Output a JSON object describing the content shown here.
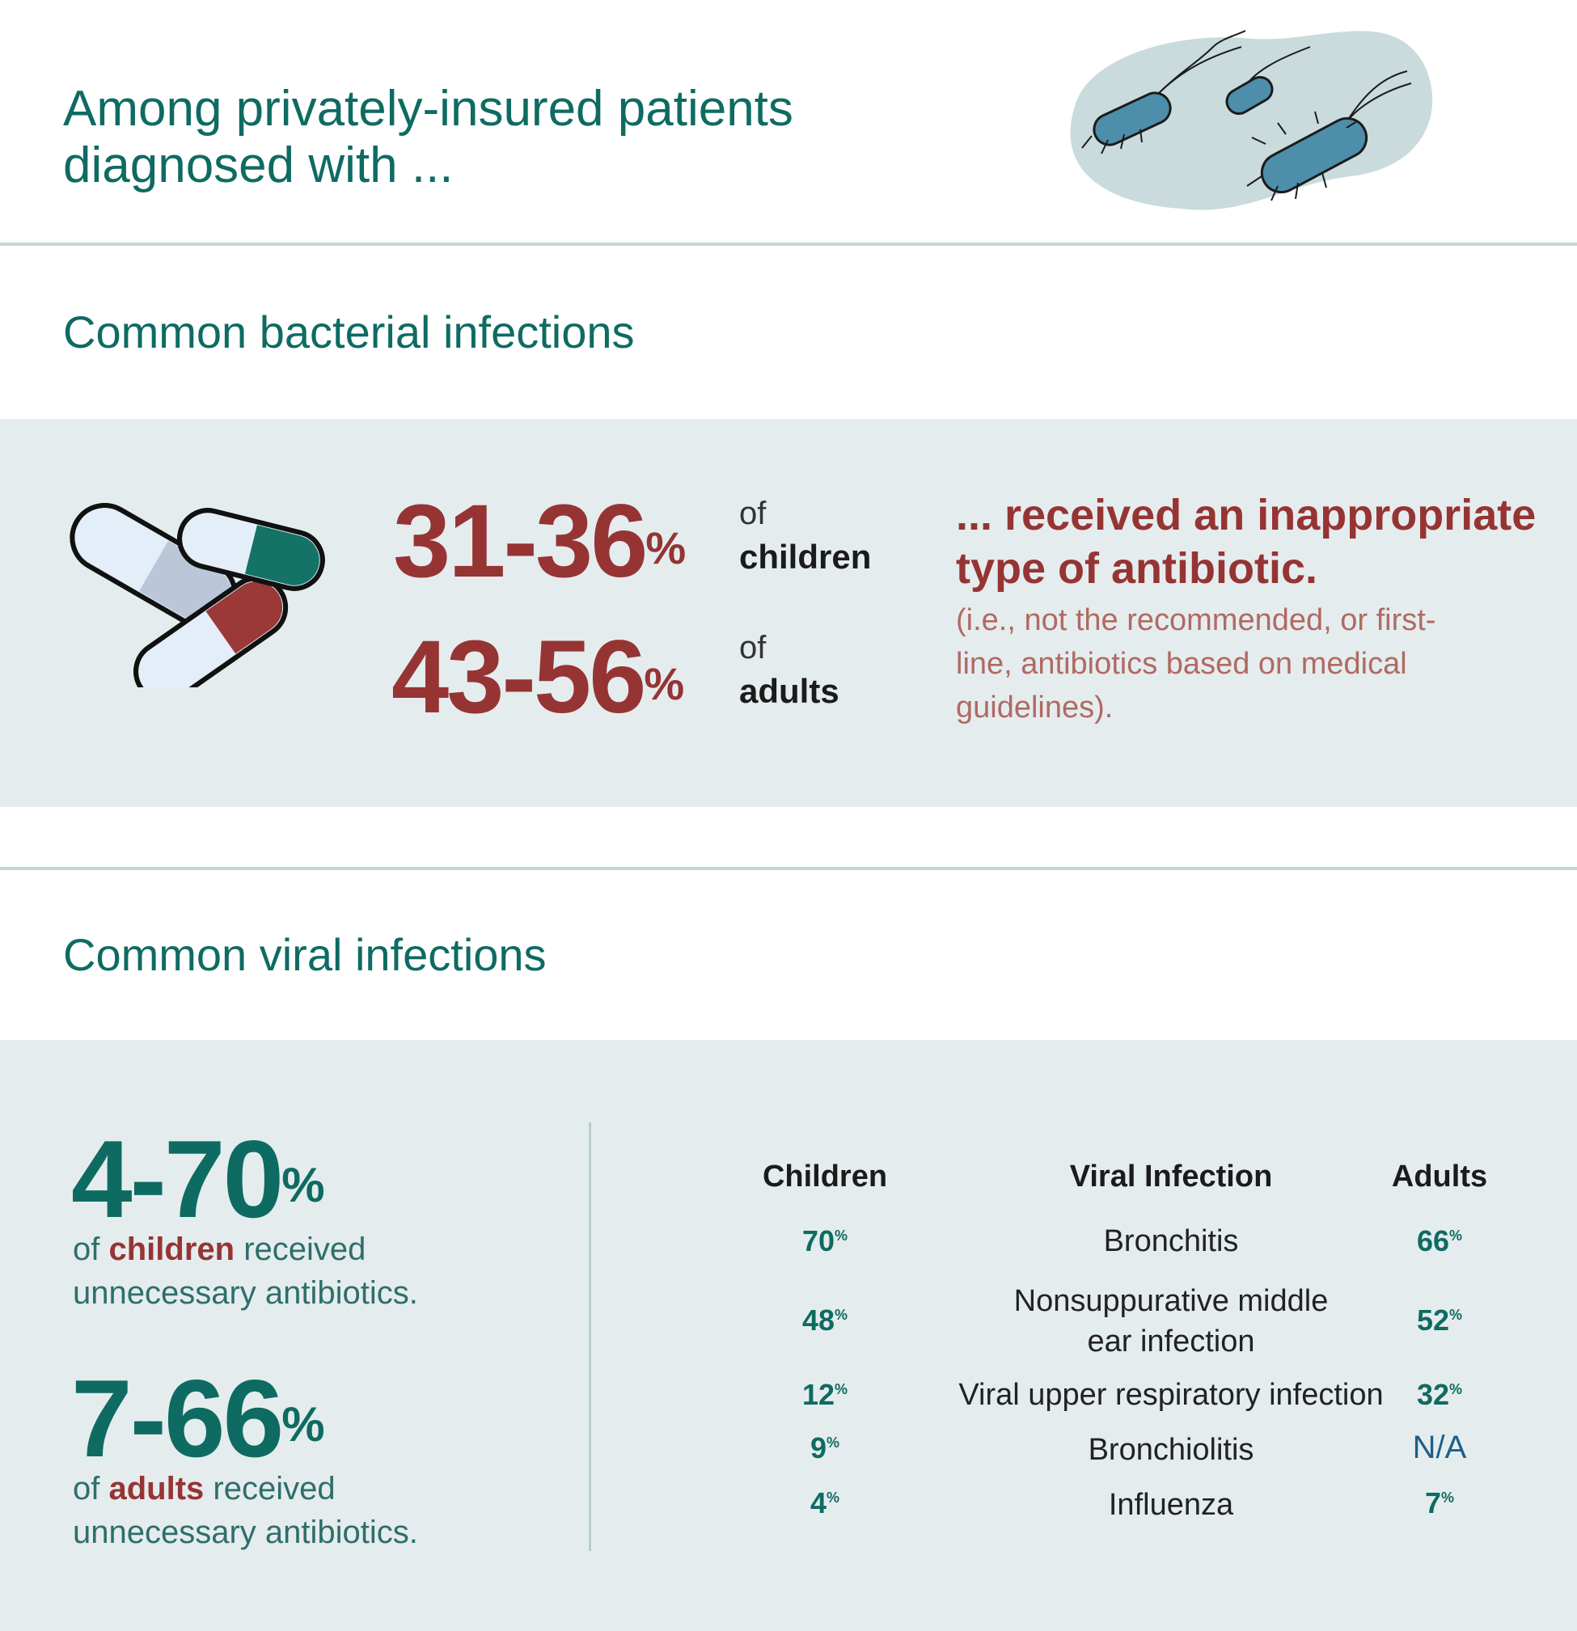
{
  "header": {
    "headline": "Among privately-insured patients diagnosed with ..."
  },
  "bacterial": {
    "title": "Common bacterial infections",
    "children_range": "31-36",
    "adults_range": "43-56",
    "pct_sign": "%",
    "of_label": "of",
    "children_label": "children",
    "adults_label": "adults",
    "received": "... received an inappropriate type of antibiotic.",
    "note": "(i.e., not the recommended, or first-line, antibiotics based on medical guidelines)."
  },
  "viral": {
    "title": "Common viral infections",
    "children_range": "4-70",
    "adults_range": "7-66",
    "pct_sign": "%",
    "of_word": "of",
    "children_word": "children",
    "adults_word": "adults",
    "received_suffix": "received",
    "unnecessary": "unnecessary antibiotics.",
    "table": {
      "headers": {
        "children": "Children",
        "infection": "Viral Infection",
        "adults": "Adults"
      },
      "rows": [
        {
          "children": "70",
          "infection": "Bronchitis",
          "adults": "66"
        },
        {
          "children": "48",
          "infection_line1": "Nonsuppurative middle",
          "infection_line2": "ear infection",
          "adults": "52"
        },
        {
          "children": "12",
          "infection": "Viral upper respiratory infection",
          "adults": "32"
        },
        {
          "children": "9",
          "infection": "Bronchiolitis",
          "adults": "N/A"
        },
        {
          "children": "4",
          "infection": "Influenza",
          "adults": "7"
        }
      ]
    }
  },
  "colors": {
    "teal": "#0e6b62",
    "red": "#963434",
    "band": "#e5ecee",
    "rule": "#c3d6d7"
  },
  "icons": [
    "bacteria-illustration",
    "pills-illustration"
  ]
}
